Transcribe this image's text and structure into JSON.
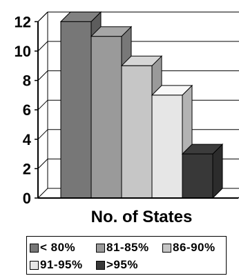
{
  "chart_data": {
    "type": "bar",
    "style": "3d",
    "xlabel": "No. of States",
    "ylim": [
      0,
      12
    ],
    "yticks": [
      0,
      2,
      4,
      6,
      8,
      10,
      12
    ],
    "grid": true,
    "legend_position": "bottom",
    "series": [
      {
        "name": "< 80%",
        "value": 12,
        "color": "#777777"
      },
      {
        "name": "81-85%",
        "value": 11,
        "color": "#9a9a9a"
      },
      {
        "name": "86-90%",
        "value": 9,
        "color": "#c6c6c6"
      },
      {
        "name": "91-95%",
        "value": 7,
        "color": "#e6e6e6"
      },
      {
        "name": ">95%",
        "value": 3,
        "color": "#383838"
      }
    ]
  }
}
